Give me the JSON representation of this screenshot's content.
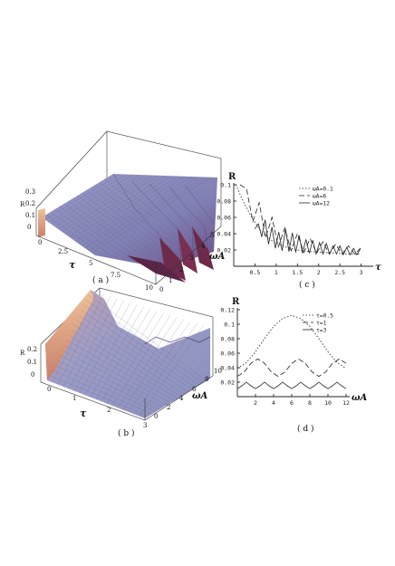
{
  "panels": {
    "a": {
      "caption": "( a )",
      "z_label": "R",
      "z_ticks": [
        "0",
        "0.1",
        "0.2",
        "0.3"
      ],
      "x_label": "τ",
      "x_ticks": [
        "0",
        "2.5",
        "5",
        "7.5",
        "10"
      ],
      "y_label": "ωA",
      "y_ticks": [
        "0",
        "1",
        "2",
        "3",
        "4",
        "5"
      ]
    },
    "b": {
      "caption": "( b )",
      "z_label": "R",
      "z_ticks": [
        "0",
        "0.1",
        "0.2"
      ],
      "x_label": "τ",
      "x_ticks": [
        "0",
        "1",
        "2",
        "3"
      ],
      "y_label": "ωA",
      "y_ticks": [
        "0",
        "2",
        "4",
        "6",
        "8",
        "10"
      ]
    },
    "c": {
      "caption": "( c )"
    },
    "d": {
      "caption": "( d )"
    }
  },
  "colors": {
    "surface": "#8e8fbf",
    "surface_dark": "#4f3a6e",
    "side": "#d9a07a",
    "wall": "#7a2f52"
  },
  "chart_data": [
    {
      "type": "line",
      "panel": "c",
      "xlabel": "τ",
      "ylabel": "R",
      "xlim": [
        0,
        3.2
      ],
      "ylim": [
        0,
        0.1
      ],
      "x_ticks": [
        0.5,
        1,
        1.5,
        2,
        2.5,
        3
      ],
      "x_tick_labels": [
        "0.5",
        "1",
        "1.5",
        "2",
        "2.5",
        "3"
      ],
      "y_ticks": [
        0.02,
        0.04,
        0.06,
        0.08,
        0.1
      ],
      "y_tick_labels": [
        "0.02",
        "0.04",
        "0.06",
        "0.08",
        "0.1"
      ],
      "legend": "top-right",
      "series": [
        {
          "name": "ωA=0.1",
          "dash": "1.5,2",
          "x": [
            0.05,
            0.2,
            0.4,
            0.6,
            0.8,
            1.0,
            1.2,
            1.5,
            1.8,
            2.1,
            2.4,
            2.7,
            3.0
          ],
          "y": [
            0.1,
            0.082,
            0.062,
            0.046,
            0.035,
            0.028,
            0.024,
            0.02,
            0.018,
            0.017,
            0.016,
            0.015,
            0.015
          ]
        },
        {
          "name": "ωA=6",
          "dash": "6,3",
          "x": [
            0.15,
            0.3,
            0.45,
            0.6,
            0.75,
            0.9,
            1.05,
            1.2,
            1.35,
            1.5,
            1.65,
            1.8,
            1.95,
            2.1,
            2.25,
            2.4,
            2.55,
            2.7,
            2.85,
            3.0
          ],
          "y": [
            0.1,
            0.095,
            0.055,
            0.078,
            0.035,
            0.06,
            0.024,
            0.047,
            0.019,
            0.04,
            0.017,
            0.034,
            0.016,
            0.03,
            0.015,
            0.027,
            0.015,
            0.025,
            0.015,
            0.023
          ]
        },
        {
          "name": "ωA=12",
          "dash": "",
          "x": [
            0.5,
            0.58,
            0.66,
            0.74,
            0.82,
            0.9,
            0.98,
            1.06,
            1.14,
            1.22,
            1.3,
            1.38,
            1.46,
            1.54,
            1.62,
            1.7,
            1.78,
            1.86,
            1.94,
            2.02,
            2.1,
            2.18,
            2.26,
            2.34,
            2.42,
            2.5,
            2.58,
            2.66,
            2.74,
            2.82,
            2.9,
            2.98
          ],
          "y": [
            0.046,
            0.052,
            0.036,
            0.057,
            0.027,
            0.048,
            0.022,
            0.042,
            0.019,
            0.046,
            0.018,
            0.041,
            0.017,
            0.038,
            0.016,
            0.033,
            0.016,
            0.032,
            0.015,
            0.029,
            0.015,
            0.028,
            0.015,
            0.025,
            0.015,
            0.025,
            0.014,
            0.023,
            0.014,
            0.022,
            0.014,
            0.021
          ]
        }
      ]
    },
    {
      "type": "line",
      "panel": "d",
      "xlabel": "ωA",
      "ylabel": "R",
      "xlim": [
        0,
        12
      ],
      "ylim": [
        0,
        0.12
      ],
      "x_ticks": [
        2,
        4,
        6,
        8,
        10,
        12
      ],
      "x_tick_labels": [
        "2",
        "4",
        "6",
        "8",
        "10",
        "12"
      ],
      "y_ticks": [
        0.02,
        0.04,
        0.06,
        0.08,
        0.1,
        0.12
      ],
      "y_tick_labels": [
        "0.02",
        "0.04",
        "0.06",
        "0.08",
        "0.1",
        "0.12"
      ],
      "legend": "top-right",
      "series": [
        {
          "name": "τ=0.5",
          "dash": "1.5,2",
          "x": [
            0,
            1,
            2,
            3,
            4,
            5,
            6,
            7,
            8,
            9,
            10,
            11,
            12
          ],
          "y": [
            0.039,
            0.047,
            0.062,
            0.08,
            0.097,
            0.108,
            0.112,
            0.108,
            0.097,
            0.08,
            0.062,
            0.047,
            0.039
          ]
        },
        {
          "name": "τ=1",
          "dash": "6,3",
          "x": [
            0,
            0.75,
            1.5,
            2.25,
            3,
            3.75,
            4.5,
            5.25,
            6,
            6.75,
            7.5,
            8.25,
            9,
            9.75,
            10.5,
            11.25,
            12
          ],
          "y": [
            0.028,
            0.034,
            0.046,
            0.052,
            0.046,
            0.034,
            0.028,
            0.034,
            0.046,
            0.052,
            0.046,
            0.034,
            0.028,
            0.034,
            0.046,
            0.052,
            0.046
          ]
        },
        {
          "name": "τ=3",
          "dash": "",
          "x": [
            0,
            0.5,
            1,
            1.5,
            2,
            2.5,
            3,
            3.5,
            4,
            4.5,
            5,
            5.5,
            6,
            6.5,
            7,
            7.5,
            8,
            8.5,
            9,
            9.5,
            10,
            10.5,
            11,
            11.5,
            12
          ],
          "y": [
            0.011,
            0.015,
            0.02,
            0.015,
            0.011,
            0.015,
            0.02,
            0.015,
            0.011,
            0.015,
            0.02,
            0.015,
            0.011,
            0.015,
            0.02,
            0.015,
            0.011,
            0.015,
            0.02,
            0.015,
            0.011,
            0.015,
            0.02,
            0.015,
            0.011
          ]
        }
      ]
    }
  ]
}
